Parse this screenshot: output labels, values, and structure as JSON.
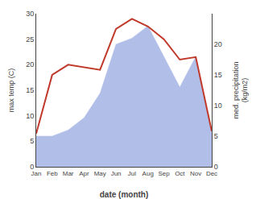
{
  "chart_data": {
    "type": "line",
    "xlabel": "date (month)",
    "ylabel": "max temp (C)",
    "y2label": "med. precipitation\n(kg/m2)",
    "categories": [
      "Jan",
      "Feb",
      "Mar",
      "Apr",
      "May",
      "Jun",
      "Jul",
      "Aug",
      "Sep",
      "Oct",
      "Nov",
      "Dec"
    ],
    "series": [
      {
        "type": "area",
        "axis": "y2",
        "color": "#b0bee8",
        "values": [
          5.0,
          5.0,
          6.0,
          8.0,
          12.0,
          20.0,
          21.0,
          23.0,
          18.0,
          13.0,
          18.0,
          5.5
        ]
      },
      {
        "type": "line",
        "color": "#c0392b",
        "values": [
          6.5,
          18.0,
          20.0,
          19.5,
          19.0,
          27.0,
          29.0,
          27.5,
          25.0,
          21.0,
          21.5,
          7.0
        ]
      }
    ],
    "ylim": [
      0,
      30
    ],
    "yticks": [
      0,
      5,
      10,
      15,
      20,
      25,
      30
    ],
    "y2lim": [
      0,
      25
    ],
    "y2ticks": [
      0,
      5,
      10,
      15,
      20
    ],
    "grid": false
  }
}
